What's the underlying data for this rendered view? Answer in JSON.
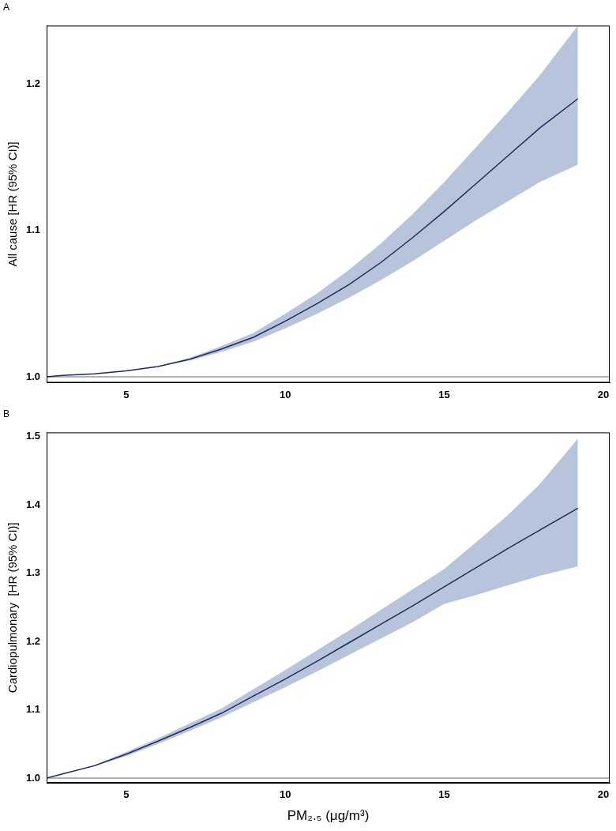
{
  "chart_data": [
    {
      "type": "line",
      "title": "A",
      "y_label": "All cause [HR (95% CI)]",
      "x": [
        2.5,
        3,
        4,
        5,
        6,
        7,
        8,
        9,
        10,
        11,
        12,
        13,
        14,
        15,
        16,
        17,
        18,
        19.2
      ],
      "values": [
        1.0,
        1.001,
        1.002,
        1.004,
        1.007,
        1.012,
        1.019,
        1.027,
        1.038,
        1.05,
        1.063,
        1.078,
        1.095,
        1.113,
        1.132,
        1.151,
        1.17,
        1.19
      ],
      "ci_lower": [
        1.0,
        1.001,
        1.002,
        1.004,
        1.007,
        1.011,
        1.017,
        1.024,
        1.033,
        1.043,
        1.054,
        1.066,
        1.079,
        1.093,
        1.107,
        1.12,
        1.133,
        1.145
      ],
      "ci_upper": [
        1.0,
        1.001,
        1.002,
        1.004,
        1.007,
        1.013,
        1.021,
        1.03,
        1.043,
        1.057,
        1.073,
        1.091,
        1.111,
        1.133,
        1.157,
        1.181,
        1.206,
        1.24
      ],
      "reference_line": 1,
      "color": "#1f2a5c",
      "xlim": [
        2.5,
        20.2
      ],
      "xticks": [
        5,
        10,
        15,
        20
      ],
      "ylim": [
        0.996,
        1.24
      ],
      "yticks": [
        {
          "value": 1,
          "label": "1.0"
        },
        1.1,
        1.2
      ],
      "grid": false
    },
    {
      "type": "line",
      "title": "B",
      "y_label": "Cardiopulmonary  [HR (95% CI)]",
      "x_label": "PM₂.₅ (μg/m³)",
      "x": [
        2.5,
        3,
        4,
        5,
        6,
        7,
        8,
        9,
        10,
        11,
        12,
        13,
        14,
        15,
        16,
        17,
        18,
        19.2
      ],
      "values": [
        1.0,
        1.006,
        1.018,
        1.035,
        1.054,
        1.074,
        1.095,
        1.12,
        1.145,
        1.171,
        1.198,
        1.225,
        1.252,
        1.28,
        1.308,
        1.336,
        1.363,
        1.395
      ],
      "ci_lower": [
        1.0,
        1.006,
        1.017,
        1.032,
        1.05,
        1.069,
        1.089,
        1.111,
        1.133,
        1.156,
        1.18,
        1.204,
        1.228,
        1.255,
        1.268,
        1.282,
        1.296,
        1.31
      ],
      "ci_upper": [
        1.0,
        1.006,
        1.019,
        1.038,
        1.058,
        1.08,
        1.102,
        1.13,
        1.158,
        1.187,
        1.216,
        1.246,
        1.276,
        1.306,
        1.345,
        1.385,
        1.43,
        1.497
      ],
      "reference_line": 1,
      "color": "#1f2a5c",
      "xlim": [
        2.5,
        20.2
      ],
      "xticks": [
        5,
        10,
        15,
        20
      ],
      "ylim": [
        0.993,
        1.506
      ],
      "yticks": [
        {
          "value": 1,
          "label": "1.0"
        },
        1.1,
        1.2,
        1.3,
        1.4,
        1.5
      ],
      "grid": false
    }
  ]
}
